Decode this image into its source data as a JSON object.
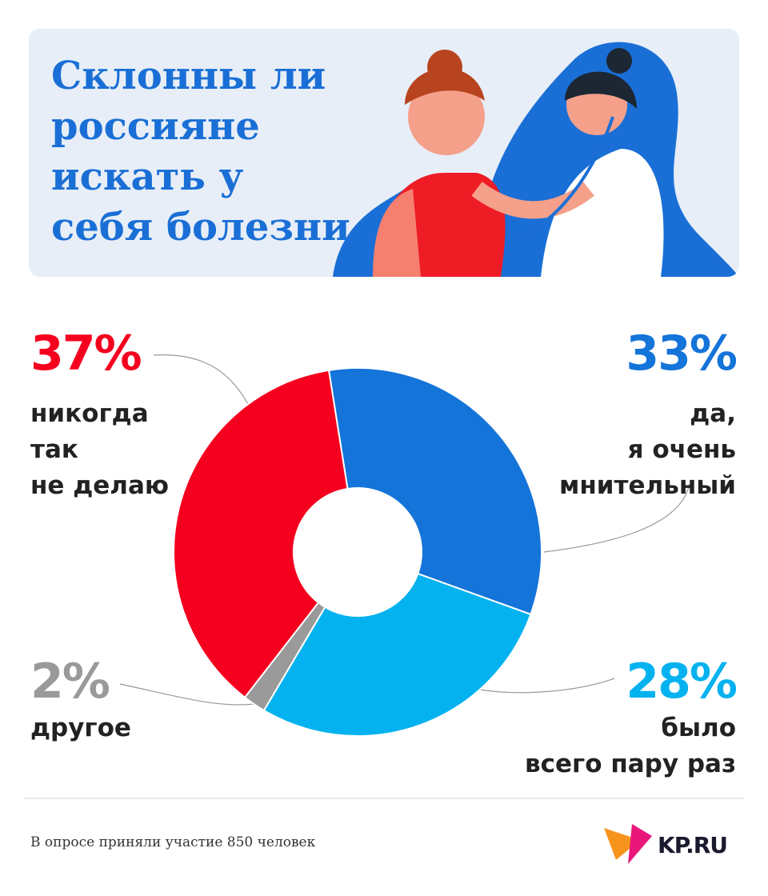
{
  "chart_data": {
    "type": "donut",
    "title": "Склонны ли россияне искать у себя болезни",
    "categories": [
      "да,\nя очень\nмнительный",
      "было\nвсего пару раз",
      "другое",
      "никогда\nтак\nне делаю"
    ],
    "values": [
      33,
      28,
      2,
      37
    ],
    "value_labels": [
      "33%",
      "28%",
      "2%",
      "37%"
    ],
    "colors": [
      "#1474d9",
      "#05b2f0",
      "#9a9a9a",
      "#f5001e"
    ],
    "footnote": "В опросе приняли участие 850 человек",
    "logo": "KP.RU"
  }
}
